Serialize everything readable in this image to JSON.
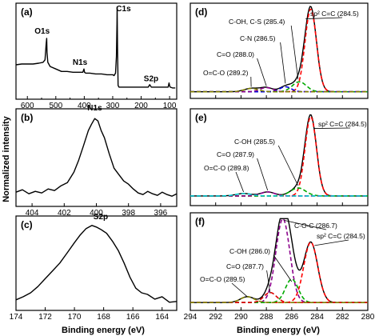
{
  "figure": {
    "ylabel": "Normalized intensity",
    "xlabel_left": "Binding energy (eV)",
    "xlabel_right": "Binding energy (eV)"
  },
  "chart_data": [
    {
      "panel": "(a)",
      "type": "line",
      "xlim": [
        640,
        75
      ],
      "xticks": [
        600,
        500,
        400,
        300,
        200,
        100
      ],
      "series": [
        {
          "color": "#000000",
          "x": [
            640,
            620,
            600,
            580,
            560,
            545,
            538,
            534,
            532,
            531,
            528,
            520,
            500,
            480,
            460,
            440,
            420,
            405,
            401,
            399,
            395,
            380,
            360,
            340,
            320,
            300,
            295,
            290,
            287,
            285,
            284.5,
            283,
            281,
            278,
            270,
            250,
            230,
            210,
            190,
            175,
            170,
            166,
            164,
            160,
            150,
            140,
            120,
            105,
            102,
            100,
            98,
            90,
            80
          ],
          "y": [
            0.3,
            0.31,
            0.31,
            0.31,
            0.32,
            0.33,
            0.36,
            0.55,
            0.62,
            0.45,
            0.33,
            0.28,
            0.25,
            0.22,
            0.22,
            0.21,
            0.21,
            0.21,
            0.25,
            0.21,
            0.2,
            0.2,
            0.19,
            0.19,
            0.18,
            0.18,
            0.17,
            0.2,
            0.4,
            0.8,
            1.0,
            0.5,
            0.05,
            0.03,
            0.03,
            0.03,
            0.03,
            0.03,
            0.03,
            0.03,
            0.06,
            0.04,
            0.03,
            0.03,
            0.03,
            0.03,
            0.03,
            0.03,
            0.08,
            0.05,
            0.03,
            0.02,
            0.02
          ]
        }
      ],
      "annotations": [
        {
          "text": "O1s",
          "x": 548,
          "y": 0.68
        },
        {
          "text": "N1s",
          "x": 415,
          "y": 0.3
        },
        {
          "text": "C1s",
          "x": 262,
          "y": 0.95
        },
        {
          "text": "S2p",
          "x": 165,
          "y": 0.1
        }
      ]
    },
    {
      "panel": "(b)",
      "type": "line",
      "xlim": [
        405,
        395
      ],
      "xticks": [
        404,
        402,
        400,
        398,
        396
      ],
      "series": [
        {
          "color": "#000000",
          "x": [
            405,
            404.6,
            404.2,
            403.8,
            403.4,
            403,
            402.6,
            402.2,
            401.8,
            401.4,
            401.1,
            400.8,
            400.5,
            400.3,
            400.1,
            399.9,
            399.7,
            399.5,
            399.2,
            398.9,
            398.6,
            398.3,
            398,
            397.7,
            397.4,
            397.1,
            396.8,
            396.5,
            396.2,
            395.9,
            395.6,
            395.3,
            395
          ],
          "y": [
            0.08,
            0.11,
            0.06,
            0.09,
            0.07,
            0.12,
            0.1,
            0.16,
            0.2,
            0.33,
            0.48,
            0.66,
            0.85,
            0.93,
            1.0,
            0.97,
            0.85,
            0.76,
            0.56,
            0.38,
            0.3,
            0.22,
            0.18,
            0.12,
            0.07,
            0.05,
            0.09,
            0.06,
            0.04,
            0.08,
            0.05,
            0.03,
            0.06
          ]
        }
      ],
      "annotations": [
        {
          "text": "N1s",
          "x": 400.1,
          "y": 1.1
        }
      ]
    },
    {
      "panel": "(c)",
      "type": "line",
      "xlim": [
        174,
        163
      ],
      "xticks": [
        174,
        172,
        170,
        168,
        166,
        164
      ],
      "series": [
        {
          "color": "#000000",
          "x": [
            174,
            173.5,
            173,
            172.5,
            172,
            171.5,
            171,
            170.5,
            170,
            169.6,
            169.2,
            168.8,
            168.5,
            168.2,
            167.8,
            167.4,
            167,
            166.6,
            166.2,
            165.8,
            165.4,
            165,
            164.5,
            164,
            163.5,
            163
          ],
          "y": [
            0.05,
            0.09,
            0.14,
            0.22,
            0.32,
            0.42,
            0.52,
            0.65,
            0.78,
            0.88,
            0.96,
            1.0,
            0.98,
            0.95,
            0.9,
            0.8,
            0.68,
            0.52,
            0.34,
            0.2,
            0.14,
            0.12,
            0.06,
            0.09,
            0.02,
            0.03
          ]
        }
      ],
      "annotations": [
        {
          "text": "S2p",
          "x": 168.2,
          "y": 1.08
        }
      ]
    },
    {
      "panel": "(d)",
      "type": "line",
      "xlim": [
        294,
        280
      ],
      "xticks": [
        294,
        292,
        290,
        288,
        286,
        284,
        282,
        280
      ],
      "series": [
        {
          "color": "#000000",
          "kind": "envelope",
          "centers": [
            284.5,
            285.4,
            286.5,
            288.0,
            289.2
          ],
          "amps": [
            1.0,
            0.12,
            0.06,
            0.05,
            0.04
          ],
          "widths": [
            0.45,
            0.55,
            0.45,
            0.5,
            0.55
          ]
        },
        {
          "color": "#ff0000",
          "kind": "peak",
          "center": 284.5,
          "amp": 1.0,
          "width": 0.45
        },
        {
          "color": "#00aa00",
          "kind": "peak",
          "center": 285.4,
          "amp": 0.12,
          "width": 0.55
        },
        {
          "color": "#0000dd",
          "kind": "peak",
          "center": 286.5,
          "amp": 0.06,
          "width": 0.45
        },
        {
          "color": "#8b008b",
          "kind": "peak",
          "center": 288.0,
          "amp": 0.05,
          "width": 0.5
        },
        {
          "color": "#808000",
          "kind": "peak",
          "center": 289.2,
          "amp": 0.04,
          "width": 0.55
        }
      ],
      "annotations": [
        {
          "text": "sp² C=C (284.5)"
        },
        {
          "text": "C-OH, C-S (285.4)"
        },
        {
          "text": "C-N (286.5)"
        },
        {
          "text": "C=O (288.0)"
        },
        {
          "text": "O=C-O (289.2)"
        }
      ]
    },
    {
      "panel": "(e)",
      "type": "line",
      "xlim": [
        294,
        280
      ],
      "xticks": [
        294,
        292,
        290,
        288,
        286,
        284,
        282,
        280
      ],
      "series": [
        {
          "color": "#000000",
          "kind": "envelope",
          "centers": [
            284.5,
            285.5,
            287.9,
            289.8
          ],
          "amps": [
            1.0,
            0.1,
            0.05,
            0.03
          ],
          "widths": [
            0.45,
            0.6,
            0.55,
            0.6
          ]
        },
        {
          "color": "#ff0000",
          "kind": "peak",
          "center": 284.5,
          "amp": 1.0,
          "width": 0.45
        },
        {
          "color": "#00aa00",
          "kind": "peak",
          "center": 285.5,
          "amp": 0.1,
          "width": 0.6
        },
        {
          "color": "#8b008b",
          "kind": "peak",
          "center": 287.9,
          "amp": 0.05,
          "width": 0.55
        },
        {
          "color": "#00cccc",
          "kind": "peak",
          "center": 289.8,
          "amp": 0.03,
          "width": 0.6
        }
      ],
      "annotations": [
        {
          "text": "sp² C=C (284.5)"
        },
        {
          "text": "C-OH (285.5)"
        },
        {
          "text": "C=O (287.9)"
        },
        {
          "text": "O=C-O (289.8)"
        }
      ]
    },
    {
      "panel": "(f)",
      "type": "line",
      "xlim": [
        294,
        280
      ],
      "xticks": [
        294,
        292,
        290,
        288,
        286,
        284,
        282,
        280
      ],
      "series": [
        {
          "color": "#000000",
          "kind": "envelope",
          "centers": [
            284.5,
            286.7,
            286.0,
            287.7,
            289.5
          ],
          "amps": [
            0.72,
            1.0,
            0.28,
            0.12,
            0.07
          ],
          "widths": [
            0.55,
            0.55,
            0.5,
            0.5,
            0.55
          ]
        },
        {
          "color": "#ff0000",
          "kind": "peak",
          "center": 284.5,
          "amp": 0.72,
          "width": 0.55
        },
        {
          "color": "#8b008b",
          "kind": "peak",
          "center": 286.7,
          "amp": 1.0,
          "width": 0.55
        },
        {
          "color": "#00aa00",
          "kind": "peak",
          "center": 286.0,
          "amp": 0.28,
          "width": 0.5
        },
        {
          "color": "#dd0000",
          "kind": "peak",
          "center": 287.7,
          "amp": 0.12,
          "width": 0.5
        },
        {
          "color": "#808000",
          "kind": "peak",
          "center": 289.5,
          "amp": 0.07,
          "width": 0.55
        }
      ],
      "annotations": [
        {
          "text": "C-O-C (286.7)"
        },
        {
          "text": "sp² C=C (284.5)"
        },
        {
          "text": "C-OH (286.0)"
        },
        {
          "text": "C=O (287.7)"
        },
        {
          "text": "O=C-O (289.5)"
        }
      ]
    }
  ]
}
